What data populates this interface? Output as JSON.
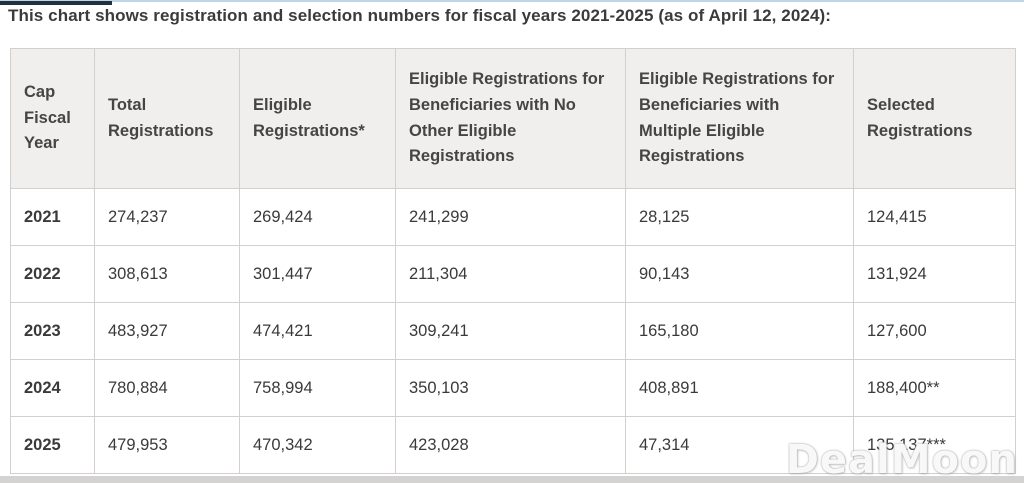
{
  "page": {
    "title": "This chart shows registration and selection numbers for fiscal years 2021-2025 (as of April 12, 2024):",
    "watermark": "DealMoon"
  },
  "colors": {
    "header_background": "#f1efee",
    "table_border": "#d2d0ce",
    "text": "#3a3a3a",
    "top_strip_blue": "#bcd6e8",
    "top_strip_dark": "#22303c",
    "bottom_strip_gray": "#d4d3d1"
  },
  "chart_data": {
    "type": "table",
    "title": "Registration and selection numbers for fiscal years 2021-2025 (as of April 12, 2024)",
    "columns": [
      "Cap Fiscal Year",
      "Total Registrations",
      "Eligible Registrations*",
      "Eligible Registrations for Beneficiaries with No Other Eligible Registrations",
      "Eligible Registrations for Beneficiaries with Multiple Eligible Registrations",
      "Selected Registrations"
    ],
    "rows": [
      [
        "2021",
        "274,237",
        "269,424",
        "241,299",
        "28,125",
        "124,415"
      ],
      [
        "2022",
        "308,613",
        "301,447",
        "211,304",
        "90,143",
        "131,924"
      ],
      [
        "2023",
        "483,927",
        "474,421",
        "309,241",
        "165,180",
        "127,600"
      ],
      [
        "2024",
        "780,884",
        "758,994",
        "350,103",
        "408,891",
        "188,400**"
      ],
      [
        "2025",
        "479,953",
        "470,342",
        "423,028",
        "47,314",
        "135,137***"
      ]
    ]
  }
}
